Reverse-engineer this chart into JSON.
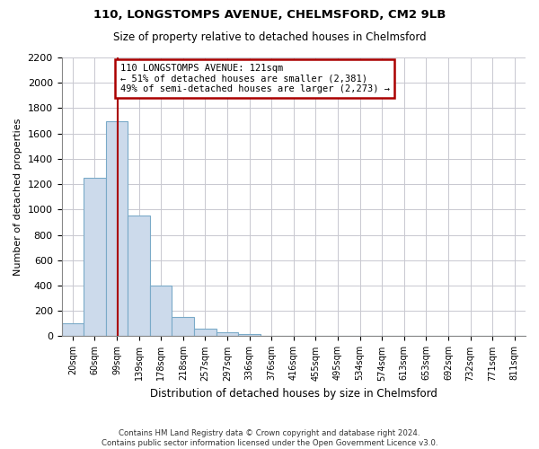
{
  "title1": "110, LONGSTOMPS AVENUE, CHELMSFORD, CM2 9LB",
  "title2": "Size of property relative to detached houses in Chelmsford",
  "xlabel": "Distribution of detached houses by size in Chelmsford",
  "ylabel": "Number of detached properties",
  "footnote": "Contains HM Land Registry data © Crown copyright and database right 2024.\nContains public sector information licensed under the Open Government Licence v3.0.",
  "bin_labels": [
    "20sqm",
    "60sqm",
    "99sqm",
    "139sqm",
    "178sqm",
    "218sqm",
    "257sqm",
    "297sqm",
    "336sqm",
    "376sqm",
    "416sqm",
    "455sqm",
    "495sqm",
    "534sqm",
    "574sqm",
    "613sqm",
    "653sqm",
    "692sqm",
    "732sqm",
    "771sqm",
    "811sqm"
  ],
  "bin_edges": [
    0,
    1,
    2,
    3,
    4,
    5,
    6,
    7,
    8,
    9,
    10,
    11,
    12,
    13,
    14,
    15,
    16,
    17,
    18,
    19,
    20,
    21
  ],
  "values": [
    100,
    1250,
    1700,
    950,
    400,
    150,
    60,
    30,
    20,
    0,
    0,
    0,
    0,
    0,
    0,
    0,
    0,
    0,
    0,
    0,
    0
  ],
  "bar_color": "#ccdaeb",
  "bar_edge_color": "#7aaac8",
  "red_line_bin": 2.56,
  "annotation_text": "110 LONGSTOMPS AVENUE: 121sqm\n← 51% of detached houses are smaller (2,381)\n49% of semi-detached houses are larger (2,273) →",
  "annotation_box_color": "#ffffff",
  "annotation_box_edge_color": "#aa0000",
  "red_line_color": "#aa0000",
  "ylim_max": 2200,
  "background_color": "#ffffff",
  "grid_color": "#c8c8d0"
}
